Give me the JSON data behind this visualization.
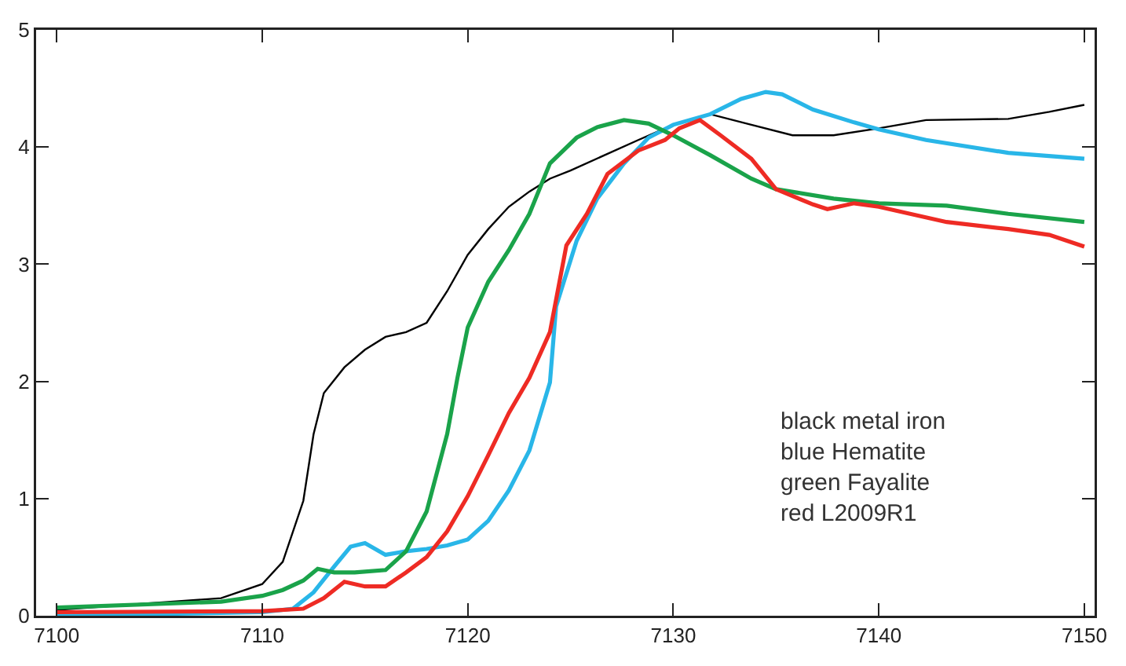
{
  "chart_data": {
    "type": "line",
    "xlim": [
      7099,
      7150.5
    ],
    "ylim": [
      0,
      5
    ],
    "xticks": [
      7100,
      7110,
      7120,
      7130,
      7140,
      7150
    ],
    "yticks": [
      0,
      1,
      2,
      3,
      4,
      5
    ],
    "grid": false,
    "marker": "none",
    "line_style": "solid",
    "annotations": [
      "black metal iron",
      "blue Hematite",
      "green Fayalite",
      "red L2009R1"
    ],
    "series": [
      {
        "color": "#000000",
        "x": [
          7100,
          7108,
          7110,
          7111,
          7112,
          7112.5,
          7113,
          7114,
          7115,
          7116,
          7117,
          7118,
          7119,
          7120,
          7121,
          7122,
          7123,
          7124,
          7125,
          7128.3,
          7130,
          7131.8,
          7133.8,
          7135.8,
          7137.8,
          7140,
          7142.3,
          7146.3,
          7148.3,
          7150
        ],
        "values": [
          0.05,
          0.15,
          0.27,
          0.46,
          0.98,
          1.55,
          1.9,
          2.12,
          2.27,
          2.38,
          2.42,
          2.5,
          2.77,
          3.08,
          3.3,
          3.49,
          3.62,
          3.73,
          3.8,
          4.06,
          4.19,
          4.28,
          4.19,
          4.1,
          4.1,
          4.16,
          4.23,
          4.24,
          4.3,
          4.36
        ]
      },
      {
        "color": "#29b6e8",
        "x": [
          7100,
          7110,
          7111.5,
          7112.5,
          7113.5,
          7114.3,
          7115,
          7116,
          7117,
          7118,
          7119,
          7120,
          7121,
          7122,
          7123,
          7124,
          7124.3,
          7125.3,
          7126.3,
          7127.6,
          7128.8,
          7130,
          7131.8,
          7133.3,
          7134.5,
          7135.3,
          7136.8,
          7138.8,
          7140,
          7142.3,
          7146.3,
          7150
        ],
        "values": [
          0.0,
          0.03,
          0.06,
          0.2,
          0.42,
          0.59,
          0.62,
          0.52,
          0.55,
          0.57,
          0.6,
          0.65,
          0.81,
          1.07,
          1.41,
          1.99,
          2.64,
          3.2,
          3.56,
          3.86,
          4.08,
          4.19,
          4.28,
          4.41,
          4.47,
          4.45,
          4.32,
          4.21,
          4.15,
          4.06,
          3.95,
          3.9
        ]
      },
      {
        "color": "#1aa34a",
        "x": [
          7100,
          7108,
          7110,
          7111,
          7112,
          7112.7,
          7113.5,
          7114.5,
          7116,
          7117,
          7118,
          7119,
          7119.5,
          7120,
          7121,
          7122,
          7123,
          7124,
          7125.3,
          7126.3,
          7127.6,
          7128.8,
          7130,
          7131.8,
          7133.8,
          7135,
          7137.8,
          7140,
          7143.3,
          7146.3,
          7150
        ],
        "values": [
          0.07,
          0.12,
          0.17,
          0.22,
          0.3,
          0.4,
          0.37,
          0.37,
          0.39,
          0.55,
          0.89,
          1.55,
          2.03,
          2.46,
          2.85,
          3.12,
          3.43,
          3.86,
          4.08,
          4.17,
          4.23,
          4.2,
          4.1,
          3.93,
          3.73,
          3.64,
          3.56,
          3.52,
          3.5,
          3.43,
          3.36
        ]
      },
      {
        "color": "#ee2b24",
        "x": [
          7100,
          7110,
          7112,
          7113,
          7114,
          7115,
          7116,
          7117,
          7118,
          7119,
          7120,
          7121,
          7122,
          7123,
          7124,
          7124.8,
          7125.8,
          7126.8,
          7128.3,
          7129.6,
          7130.3,
          7131.3,
          7132.3,
          7133.8,
          7135,
          7136.8,
          7137.5,
          7138.8,
          7140,
          7143.3,
          7146.3,
          7148.3,
          7150
        ],
        "values": [
          0.03,
          0.04,
          0.06,
          0.15,
          0.29,
          0.25,
          0.25,
          0.37,
          0.5,
          0.72,
          1.02,
          1.37,
          1.73,
          2.03,
          2.42,
          3.16,
          3.43,
          3.77,
          3.97,
          4.06,
          4.16,
          4.23,
          4.1,
          3.9,
          3.64,
          3.51,
          3.47,
          3.52,
          3.49,
          3.36,
          3.3,
          3.25,
          3.15
        ]
      }
    ]
  }
}
